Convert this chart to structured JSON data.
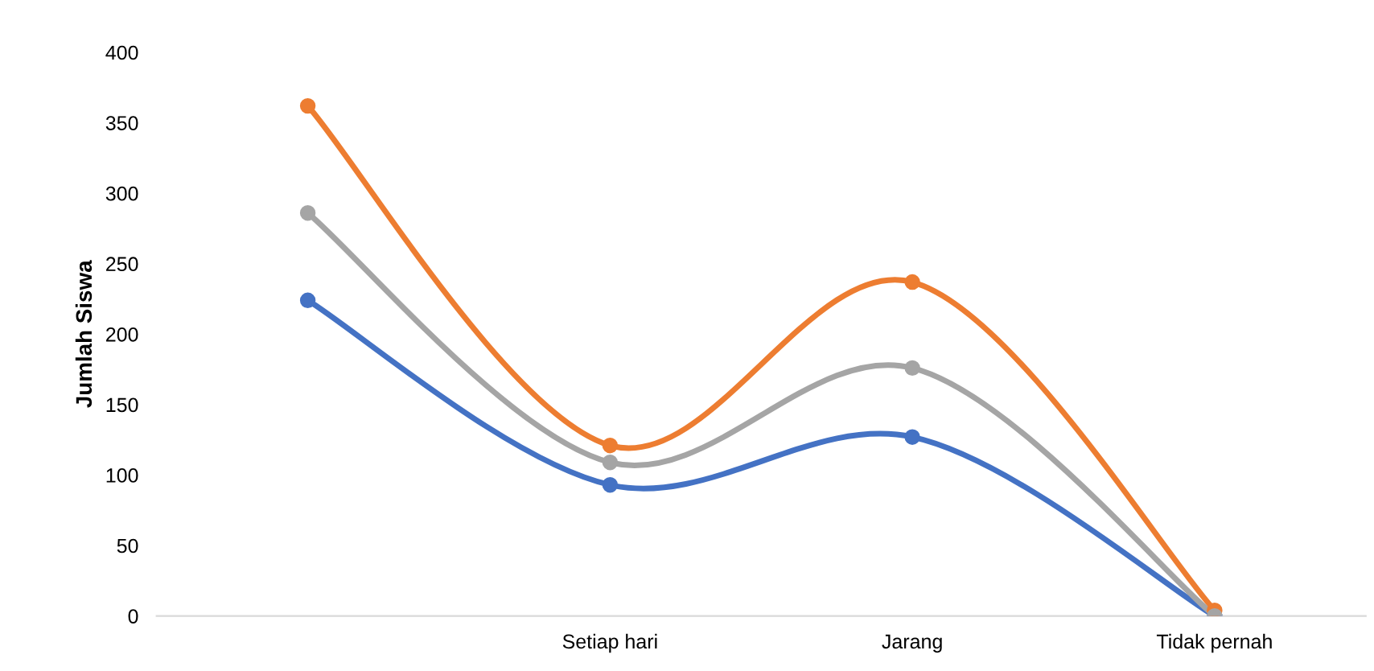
{
  "chart_data": {
    "type": "line",
    "ylabel": "Jumlah Siswa",
    "categories": [
      null,
      "Setiap hari",
      "Jarang",
      "Tidak pernah"
    ],
    "series": [
      {
        "color": "#4472c4",
        "values": [
          224,
          93,
          127,
          0
        ]
      },
      {
        "color": "#ed7d31",
        "values": [
          362,
          121,
          237,
          4
        ]
      },
      {
        "color": "#a5a5a5",
        "values": [
          286,
          109,
          176,
          0
        ]
      }
    ],
    "ylim": [
      0,
      400
    ],
    "yticks": [
      0,
      50,
      100,
      150,
      200,
      250,
      300,
      350,
      400
    ],
    "grid": false,
    "legend": false,
    "marker": "circle",
    "line_style": "solid"
  }
}
